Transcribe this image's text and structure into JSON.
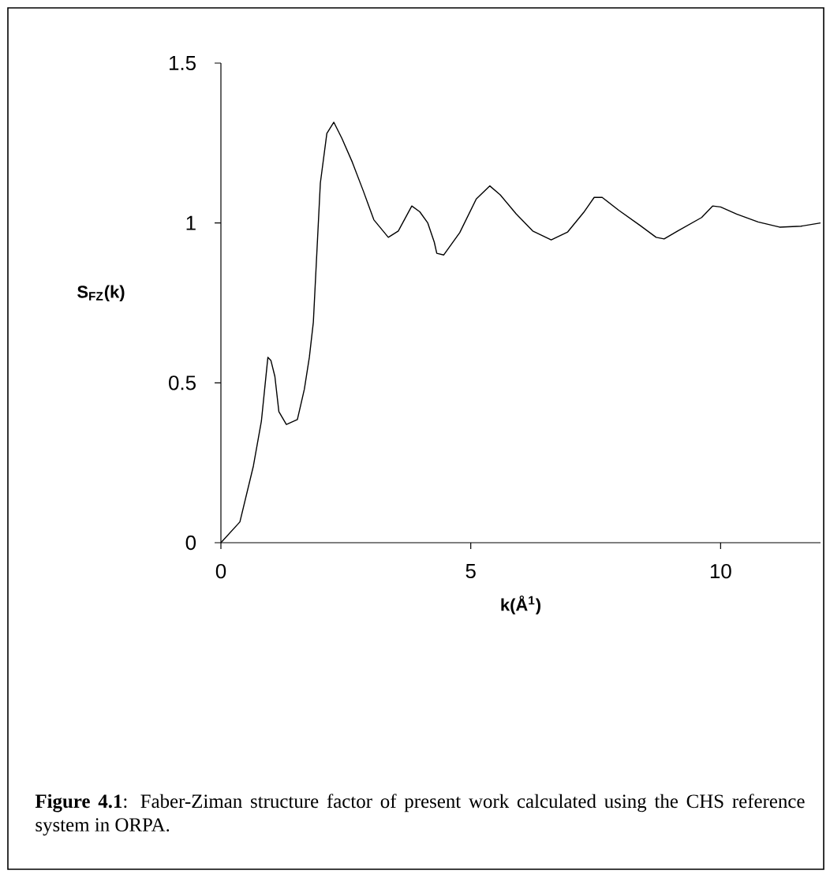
{
  "chart_data": {
    "type": "line",
    "xlabel": "k(Å$^{1}$)",
    "ylabel": "S$_{FZ}$(k)",
    "x": [
      0,
      0.38,
      0.65,
      0.81,
      0.94,
      1.0,
      1.08,
      1.16,
      1.31,
      1.53,
      1.67,
      1.77,
      1.85,
      1.99,
      2.12,
      2.26,
      2.42,
      2.63,
      2.85,
      3.06,
      3.35,
      3.55,
      3.82,
      3.98,
      4.14,
      4.27,
      4.32,
      4.46,
      4.78,
      5.11,
      5.38,
      5.59,
      5.91,
      6.24,
      6.61,
      6.94,
      7.26,
      7.47,
      7.63,
      7.96,
      8.39,
      8.71,
      8.87,
      9.14,
      9.62,
      9.84,
      10.0,
      10.32,
      10.75,
      11.18,
      11.61,
      12.0
    ],
    "series": [
      {
        "color": "#000000",
        "values": [
          0,
          0.065,
          0.24,
          0.38,
          0.58,
          0.57,
          0.52,
          0.41,
          0.37,
          0.385,
          0.48,
          0.58,
          0.69,
          1.125,
          1.28,
          1.315,
          1.265,
          1.19,
          1.1,
          1.01,
          0.955,
          0.975,
          1.053,
          1.035,
          1.0,
          0.94,
          0.905,
          0.9,
          0.97,
          1.075,
          1.116,
          1.088,
          1.028,
          0.975,
          0.947,
          0.972,
          1.033,
          1.08,
          1.08,
          1.04,
          0.992,
          0.955,
          0.95,
          0.975,
          1.017,
          1.053,
          1.05,
          1.028,
          1.003,
          0.987,
          0.99,
          1.0
        ]
      }
    ],
    "xlim": [
      0,
      12
    ],
    "ylim": [
      0,
      1.5
    ],
    "xticks": [
      0,
      5,
      10
    ],
    "yticks": [
      0,
      0.5,
      1,
      1.5
    ],
    "annotations": [
      "**Figure 4.1**: Faber-Ziman structure factor of present work calculated using the CHS reference system in ORPA."
    ]
  }
}
